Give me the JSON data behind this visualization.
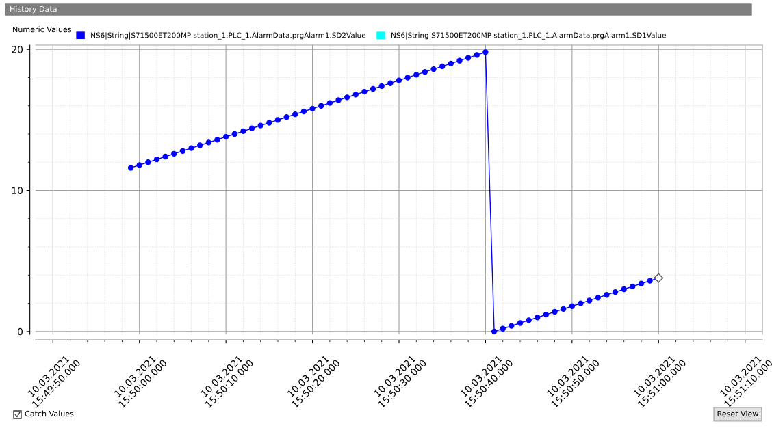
{
  "chart_data": {
    "type": "line",
    "title": "History Data",
    "x": [
      "2021-03-10T15:49:59",
      "2021-03-10T15:50:00",
      "2021-03-10T15:50:01",
      "2021-03-10T15:50:02",
      "2021-03-10T15:50:03",
      "2021-03-10T15:50:04",
      "2021-03-10T15:50:05",
      "2021-03-10T15:50:06",
      "2021-03-10T15:50:07",
      "2021-03-10T15:50:08",
      "2021-03-10T15:50:09",
      "2021-03-10T15:50:10",
      "2021-03-10T15:50:11",
      "2021-03-10T15:50:12",
      "2021-03-10T15:50:13",
      "2021-03-10T15:50:14",
      "2021-03-10T15:50:15",
      "2021-03-10T15:50:16",
      "2021-03-10T15:50:17",
      "2021-03-10T15:50:18",
      "2021-03-10T15:50:19",
      "2021-03-10T15:50:20",
      "2021-03-10T15:50:21",
      "2021-03-10T15:50:22",
      "2021-03-10T15:50:23",
      "2021-03-10T15:50:24",
      "2021-03-10T15:50:25",
      "2021-03-10T15:50:26",
      "2021-03-10T15:50:27",
      "2021-03-10T15:50:28",
      "2021-03-10T15:50:29",
      "2021-03-10T15:50:30",
      "2021-03-10T15:50:31",
      "2021-03-10T15:50:32",
      "2021-03-10T15:50:33",
      "2021-03-10T15:50:34",
      "2021-03-10T15:50:35",
      "2021-03-10T15:50:36",
      "2021-03-10T15:50:37",
      "2021-03-10T15:50:38",
      "2021-03-10T15:50:39",
      "2021-03-10T15:50:40",
      "2021-03-10T15:50:41",
      "2021-03-10T15:50:42",
      "2021-03-10T15:50:43",
      "2021-03-10T15:50:44",
      "2021-03-10T15:50:45",
      "2021-03-10T15:50:46",
      "2021-03-10T15:50:47",
      "2021-03-10T15:50:48",
      "2021-03-10T15:50:49",
      "2021-03-10T15:50:50",
      "2021-03-10T15:50:51",
      "2021-03-10T15:50:52",
      "2021-03-10T15:50:53",
      "2021-03-10T15:50:54",
      "2021-03-10T15:50:55",
      "2021-03-10T15:50:56",
      "2021-03-10T15:50:57",
      "2021-03-10T15:50:58",
      "2021-03-10T15:50:59",
      "2021-03-10T15:51:00"
    ],
    "series": [
      {
        "name": "NS6|String|S71500ET200MP station_1.PLC_1.AlarmData.prgAlarm1.SD2Value",
        "color": "#0000ff",
        "values": [
          11.6,
          11.8,
          12.0,
          12.2,
          12.4,
          12.6,
          12.8,
          13.0,
          13.2,
          13.4,
          13.6,
          13.8,
          14.0,
          14.2,
          14.4,
          14.6,
          14.8,
          15.0,
          15.2,
          15.4,
          15.6,
          15.8,
          16.0,
          16.2,
          16.4,
          16.6,
          16.8,
          17.0,
          17.2,
          17.4,
          17.6,
          17.8,
          18.0,
          18.2,
          18.4,
          18.6,
          18.8,
          19.0,
          19.2,
          19.4,
          19.6,
          19.8,
          0.0,
          0.2,
          0.4,
          0.6,
          0.8,
          1.0,
          1.2,
          1.4,
          1.6,
          1.8,
          2.0,
          2.2,
          2.4,
          2.6,
          2.8,
          3.0,
          3.2,
          3.4,
          3.6,
          3.8
        ]
      },
      {
        "name": "NS6|String|S71500ET200MP station_1.PLC_1.AlarmData.prgAlarm1.SD1Value",
        "color": "#00ffff",
        "values": [
          null,
          null,
          null,
          null,
          null,
          null,
          null,
          null,
          null,
          null,
          null,
          null,
          null,
          null,
          null,
          null,
          null,
          null,
          null,
          null,
          null,
          null,
          null,
          null,
          null,
          null,
          null,
          null,
          null,
          null,
          null,
          null,
          null,
          null,
          null,
          null,
          null,
          null,
          null,
          null,
          null,
          null,
          null,
          null,
          null,
          null,
          null,
          null,
          null,
          null,
          null,
          null,
          null,
          null,
          null,
          null,
          null,
          null,
          null,
          null,
          null,
          null
        ]
      },
      {
        "type": "scatter",
        "color": "#ffffff",
        "marker": "diamond",
        "x": [
          "2021-03-10T15:51:00"
        ],
        "values": [
          3.8
        ]
      }
    ],
    "marker": "circle",
    "line_style": "solid",
    "grid": true,
    "legend": "top left",
    "xlim": [
      "2021-03-10T15:49:48",
      "2021-03-10T15:51:12"
    ],
    "xticks": [
      {
        "value": "2021-03-10T15:49:50",
        "label": "10.03.2021\n15:49:50.000"
      },
      {
        "value": "2021-03-10T15:50:00",
        "label": "10.03.2021\n15:50:00.000"
      },
      {
        "value": "2021-03-10T15:50:10",
        "label": "10.03.2021\n15:50:10.000"
      },
      {
        "value": "2021-03-10T15:50:20",
        "label": "10.03.2021\n15:50:20.000"
      },
      {
        "value": "2021-03-10T15:50:30",
        "label": "10.03.2021\n15:50:30.000"
      },
      {
        "value": "2021-03-10T15:50:40",
        "label": "10.03.2021\n15:50:40.000"
      },
      {
        "value": "2021-03-10T15:50:50",
        "label": "10.03.2021\n15:50:50.000"
      },
      {
        "value": "2021-03-10T15:51:00",
        "label": "10.03.2021\n15:51:00.000"
      },
      {
        "value": "2021-03-10T15:51:10",
        "label": "10.03.2021\n15:51:10.000"
      }
    ],
    "ylim": [
      -0.2,
      20.3
    ],
    "yticks": [
      0,
      10,
      20
    ],
    "annotations": [
      "Numeric Values",
      "Catch Values",
      "Reset View"
    ]
  }
}
